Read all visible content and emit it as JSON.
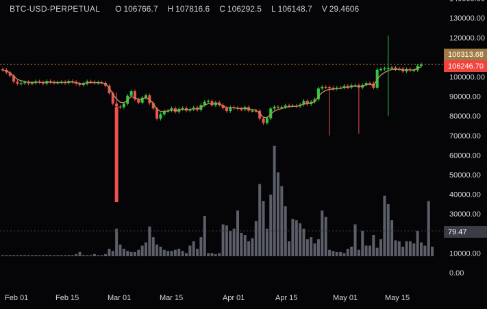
{
  "legend": {
    "symbol": "BTC-USD-PERPETUAL",
    "open_label": "O",
    "open": "106766.7",
    "high_label": "H",
    "high": "107816.6",
    "close_label": "C",
    "close": "106292.5",
    "low_label": "L",
    "low": "106148.7",
    "volume_label": "V",
    "volume": "29.4606"
  },
  "colors": {
    "background": "#050507",
    "up": "#2ecc40",
    "down": "#ef5350",
    "ma": "#b8925a",
    "volume": "#5c5f6a",
    "grid_dotted": "#3a3d44",
    "price_line": "#e08a3c",
    "tag_last": "#f0433f",
    "tag_prev": "#a07a44",
    "tag_volume": "#3a3d46"
  },
  "chart_data": {
    "type": "candlestick",
    "price_axis": {
      "ticks": [
        0,
        10000,
        20000,
        30000,
        40000,
        50000,
        60000,
        70000,
        80000,
        90000,
        100000,
        110000,
        120000,
        130000,
        140000
      ],
      "tick_labels": [
        "0.00",
        "10000.00",
        "20000.00",
        "30000.00",
        "40000.00",
        "50000.00",
        "60000.00",
        "70000.00",
        "80000.00",
        "90000.00",
        "100000.00",
        "",
        "120000.00",
        "130000.00",
        "140000.00"
      ],
      "range": [
        0,
        140000
      ]
    },
    "time_axis": {
      "labels": [
        "Feb 01",
        "Feb 15",
        "Mar 01",
        "Mar 15",
        "Apr 01",
        "Apr 15",
        "May 01",
        "May 15"
      ]
    },
    "price_tags": {
      "last": "106246.70",
      "prev": "106313.68",
      "volume": "79.47"
    },
    "ma_label": "",
    "closes": [
      103500,
      102200,
      100500,
      97500,
      96500,
      96700,
      97200,
      96600,
      96800,
      97600,
      97200,
      96500,
      97800,
      97200,
      96900,
      97100,
      97300,
      96800,
      97800,
      97300,
      96500,
      95800,
      96400,
      97600,
      97300,
      96800,
      97100,
      96900,
      95400,
      91600,
      86300,
      84800,
      84500,
      86200,
      90300,
      92600,
      88400,
      86800,
      89300,
      90500,
      86600,
      83800,
      78600,
      80800,
      82500,
      82700,
      83900,
      82100,
      83600,
      84000,
      82700,
      83400,
      84300,
      83100,
      85600,
      87200,
      87600,
      85500,
      86900,
      85600,
      84000,
      82500,
      84400,
      84100,
      83600,
      83300,
      84500,
      82700,
      82700,
      82600,
      78700,
      76400,
      78800,
      83800,
      84700,
      84400,
      84500,
      85300,
      85200,
      85200,
      84900,
      85800,
      87700,
      86000,
      87200,
      88500,
      94000,
      94800,
      94700,
      94400,
      93800,
      94400,
      94400,
      95300,
      94600,
      95600,
      95700,
      94500,
      95800,
      96800,
      96600,
      94400,
      103600,
      103900,
      104300,
      104500,
      104700,
      103700,
      104100,
      102700,
      103800,
      103300,
      103400,
      105600,
      106300
    ],
    "volume_profile": [
      1,
      1,
      1,
      1,
      1,
      1,
      1,
      1,
      1,
      1,
      1,
      1,
      1,
      1,
      1,
      1,
      1,
      1,
      1,
      1,
      2,
      4,
      1,
      1,
      1,
      2,
      1,
      1,
      2,
      7,
      5,
      26,
      11,
      7,
      5,
      4,
      4,
      6,
      10,
      13,
      28,
      18,
      11,
      9,
      6,
      5,
      5,
      6,
      7,
      5,
      3,
      10,
      14,
      7,
      18,
      38,
      3,
      3,
      2,
      3,
      30,
      29,
      24,
      26,
      43,
      22,
      20,
      14,
      17,
      33,
      68,
      52,
      26,
      58,
      104,
      79,
      66,
      47,
      14,
      35,
      34,
      31,
      26,
      16,
      18,
      12,
      16,
      43,
      37,
      6,
      5,
      4,
      4,
      3,
      7,
      9,
      30,
      6,
      24,
      10,
      10,
      20,
      8,
      16,
      57,
      49,
      34,
      15,
      14,
      9,
      14,
      14,
      12,
      24,
      13,
      10,
      52,
      9
    ]
  }
}
